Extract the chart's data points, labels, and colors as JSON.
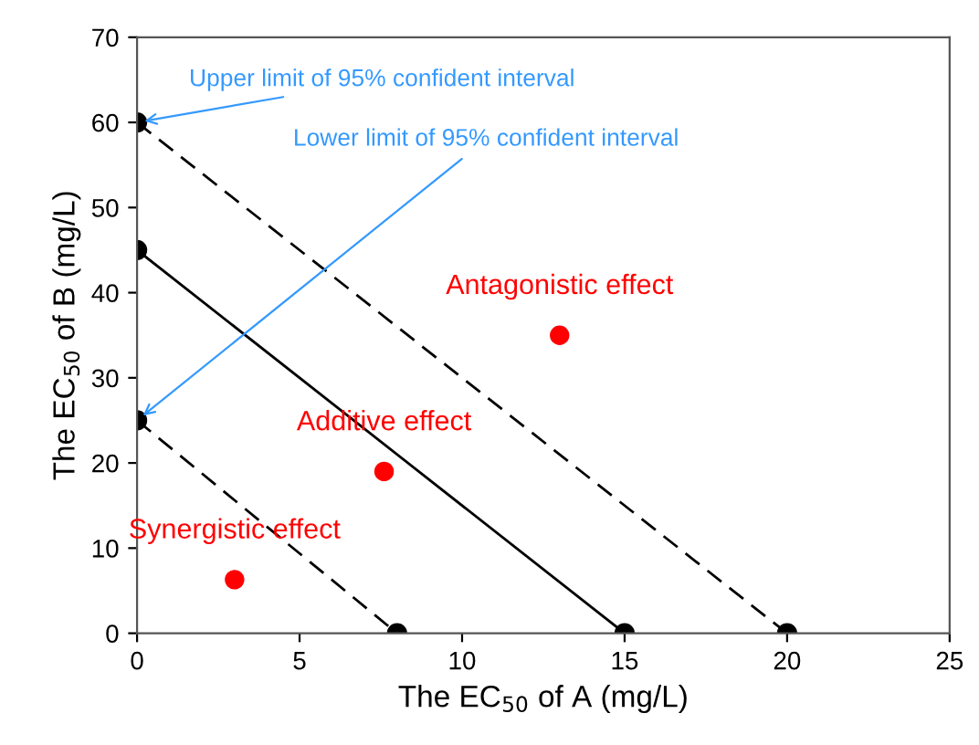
{
  "chart_data": {
    "type": "line",
    "xlabel": "The EC$_{50}$ of A (mg/L)",
    "ylabel": "The EC$_{50}$ of B (mg/L)",
    "xlim": [
      0,
      25
    ],
    "ylim": [
      0,
      70
    ],
    "xticks": [
      0,
      5,
      10,
      15,
      20,
      25
    ],
    "yticks": [
      0,
      10,
      20,
      30,
      40,
      50,
      60,
      70
    ],
    "grid": false,
    "marker": "circle",
    "series": [
      {
        "line_style": "dashed",
        "color": "#000000",
        "x": [
          0,
          20
        ],
        "values": [
          60,
          0
        ]
      },
      {
        "line_style": "solid",
        "color": "#000000",
        "x": [
          0,
          15
        ],
        "values": [
          45,
          0
        ]
      },
      {
        "line_style": "dashed",
        "color": "#000000",
        "x": [
          0,
          8
        ],
        "values": [
          25,
          0
        ]
      },
      {
        "type": "scatter",
        "name": "Antagonistic effect",
        "color": "#ff0000",
        "x": [
          13
        ],
        "values": [
          35
        ]
      },
      {
        "type": "scatter",
        "name": "Additive effect",
        "color": "#ff0000",
        "x": [
          7.6
        ],
        "values": [
          19
        ]
      },
      {
        "type": "scatter",
        "name": "Synergistic effect",
        "color": "#ff0000",
        "x": [
          3
        ],
        "values": [
          6.3
        ]
      }
    ],
    "annotations": [
      {
        "text": "Upper limit of 95% confident interval",
        "x": 0,
        "y": 60
      },
      {
        "text": "Lower limit of 95% confident interval",
        "x": 0,
        "y": 25
      }
    ]
  }
}
